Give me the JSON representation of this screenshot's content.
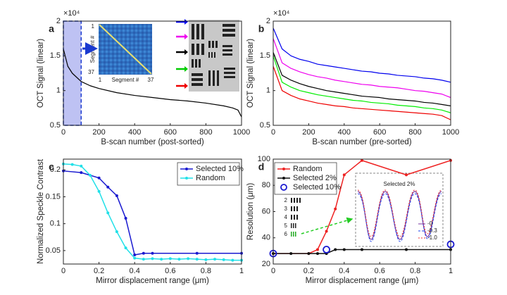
{
  "chart_data": [
    {
      "type": "line",
      "panel": "a",
      "exponent": "×10⁴",
      "y_label": "OCT Signal (linear)",
      "x_label": "B-scan number (post-sorted)",
      "x": [
        0,
        25,
        50,
        100,
        150,
        200,
        300,
        400,
        500,
        600,
        700,
        800,
        900,
        950,
        980,
        1000
      ],
      "values": [
        1.6,
        1.35,
        1.25,
        1.13,
        1.07,
        1.03,
        0.97,
        0.93,
        0.9,
        0.87,
        0.85,
        0.82,
        0.78,
        0.75,
        0.72,
        0.62
      ],
      "color": "#000000",
      "highlight_x": [
        0,
        100
      ],
      "xlim": [
        0,
        1000
      ],
      "xticks": [
        0,
        200,
        400,
        600,
        800,
        1000
      ],
      "ylim": [
        0.5,
        2
      ],
      "yticks": [
        0.5,
        1,
        1.5,
        2
      ],
      "inset": {
        "axis_label": "Segment #",
        "first": "1",
        "last": "37"
      }
    },
    {
      "type": "line",
      "panel": "b",
      "exponent": "×10⁴",
      "y_label": "OCT Signal (linear)",
      "x_label": "B-scan number (pre-sorted)",
      "x": [
        0,
        50,
        100,
        150,
        200,
        250,
        300,
        350,
        400,
        450,
        500,
        550,
        600,
        650,
        700,
        750,
        800,
        850,
        900,
        950,
        1000
      ],
      "series": [
        {
          "color": "#0000ee",
          "values": [
            1.9,
            1.6,
            1.5,
            1.45,
            1.42,
            1.38,
            1.36,
            1.34,
            1.32,
            1.3,
            1.28,
            1.27,
            1.25,
            1.24,
            1.22,
            1.21,
            1.2,
            1.18,
            1.17,
            1.15,
            1.12
          ]
        },
        {
          "color": "#ee00ee",
          "values": [
            1.75,
            1.4,
            1.32,
            1.27,
            1.23,
            1.2,
            1.18,
            1.15,
            1.13,
            1.11,
            1.09,
            1.08,
            1.06,
            1.05,
            1.04,
            1.02,
            1.0,
            0.99,
            0.97,
            0.95,
            0.9
          ]
        },
        {
          "color": "#000000",
          "values": [
            1.55,
            1.22,
            1.15,
            1.1,
            1.06,
            1.03,
            1.0,
            0.98,
            0.96,
            0.94,
            0.92,
            0.91,
            0.9,
            0.88,
            0.87,
            0.86,
            0.85,
            0.83,
            0.82,
            0.8,
            0.78
          ]
        },
        {
          "color": "#00ee00",
          "values": [
            1.5,
            1.12,
            1.05,
            1.0,
            0.97,
            0.94,
            0.92,
            0.9,
            0.88,
            0.86,
            0.85,
            0.83,
            0.82,
            0.81,
            0.79,
            0.78,
            0.77,
            0.75,
            0.74,
            0.72,
            0.68
          ]
        },
        {
          "color": "#ee0000",
          "values": [
            1.35,
            1.0,
            0.93,
            0.88,
            0.85,
            0.82,
            0.8,
            0.78,
            0.77,
            0.75,
            0.74,
            0.73,
            0.72,
            0.71,
            0.7,
            0.69,
            0.68,
            0.67,
            0.66,
            0.64,
            0.58
          ]
        }
      ],
      "xlim": [
        0,
        1000
      ],
      "xticks": [
        0,
        200,
        400,
        600,
        800,
        1000
      ],
      "ylim": [
        0.5,
        2
      ],
      "yticks": [
        0.5,
        1,
        1.5,
        2
      ]
    },
    {
      "type": "line",
      "panel": "c",
      "y_label": "Normalized Speckle Contrast",
      "x_label": "Mirror displacement range (μm)",
      "series": [
        {
          "name": "Selected 10%",
          "color": "#1a1ad0",
          "marker": "dot",
          "x": [
            0,
            0.1,
            0.2,
            0.25,
            0.3,
            0.35,
            0.4,
            0.45,
            0.5,
            0.75,
            1
          ],
          "values": [
            0.198,
            0.195,
            0.185,
            0.168,
            0.152,
            0.11,
            0.042,
            0.045,
            0.045,
            0.045,
            0.045
          ]
        },
        {
          "name": "Random",
          "color": "#22e0e8",
          "marker": "dot",
          "x": [
            0,
            0.05,
            0.1,
            0.15,
            0.2,
            0.25,
            0.3,
            0.35,
            0.4,
            0.45,
            0.5,
            0.55,
            0.6,
            0.65,
            0.7,
            0.75,
            0.8,
            0.85,
            0.9,
            0.95,
            1
          ],
          "values": [
            0.211,
            0.21,
            0.207,
            0.19,
            0.16,
            0.12,
            0.085,
            0.055,
            0.036,
            0.034,
            0.035,
            0.034,
            0.035,
            0.034,
            0.035,
            0.034,
            0.033,
            0.034,
            0.033,
            0.032,
            0.032
          ]
        }
      ],
      "xlim": [
        0,
        1
      ],
      "xticks": [
        0,
        0.2,
        0.4,
        0.6,
        0.8,
        1
      ],
      "ylim": [
        0.025,
        0.22
      ],
      "yticks": [
        0.05,
        0.1,
        0.15,
        0.2
      ]
    },
    {
      "type": "line",
      "panel": "d",
      "y_label": "Resolution (μm)",
      "x_label": "Mirror displacement range (μm)",
      "series": [
        {
          "name": "Random",
          "color": "#ee2222",
          "marker": "dot",
          "x": [
            0,
            0.2,
            0.25,
            0.3,
            0.35,
            0.4,
            0.5,
            0.75,
            1
          ],
          "values": [
            28,
            28,
            31,
            45,
            62,
            88,
            99,
            88,
            99
          ]
        },
        {
          "name": "Selected 2%",
          "color": "#111111",
          "marker": "dot",
          "x": [
            0,
            0.1,
            0.2,
            0.25,
            0.3,
            0.35,
            0.4,
            0.5,
            0.75,
            1
          ],
          "values": [
            28,
            28,
            28,
            28,
            28,
            31,
            31,
            31,
            31,
            31
          ]
        },
        {
          "name": "Selected 10%",
          "color": "#1a1ad0",
          "marker": "open-circle",
          "line": false,
          "x": [
            0,
            0.3,
            1
          ],
          "values": [
            28,
            31,
            35
          ]
        }
      ],
      "xlim": [
        0,
        1
      ],
      "xticks": [
        0,
        0.2,
        0.4,
        0.6,
        0.8,
        1
      ],
      "ylim": [
        20,
        100
      ],
      "yticks": [
        20,
        40,
        60,
        80,
        100
      ],
      "inset": {
        "title": "Selected 2%",
        "legend": [
          "-0",
          "-0.3",
          "-1.0"
        ],
        "target_labels": [
          "2",
          "3",
          "4",
          "5",
          "6"
        ]
      }
    }
  ]
}
